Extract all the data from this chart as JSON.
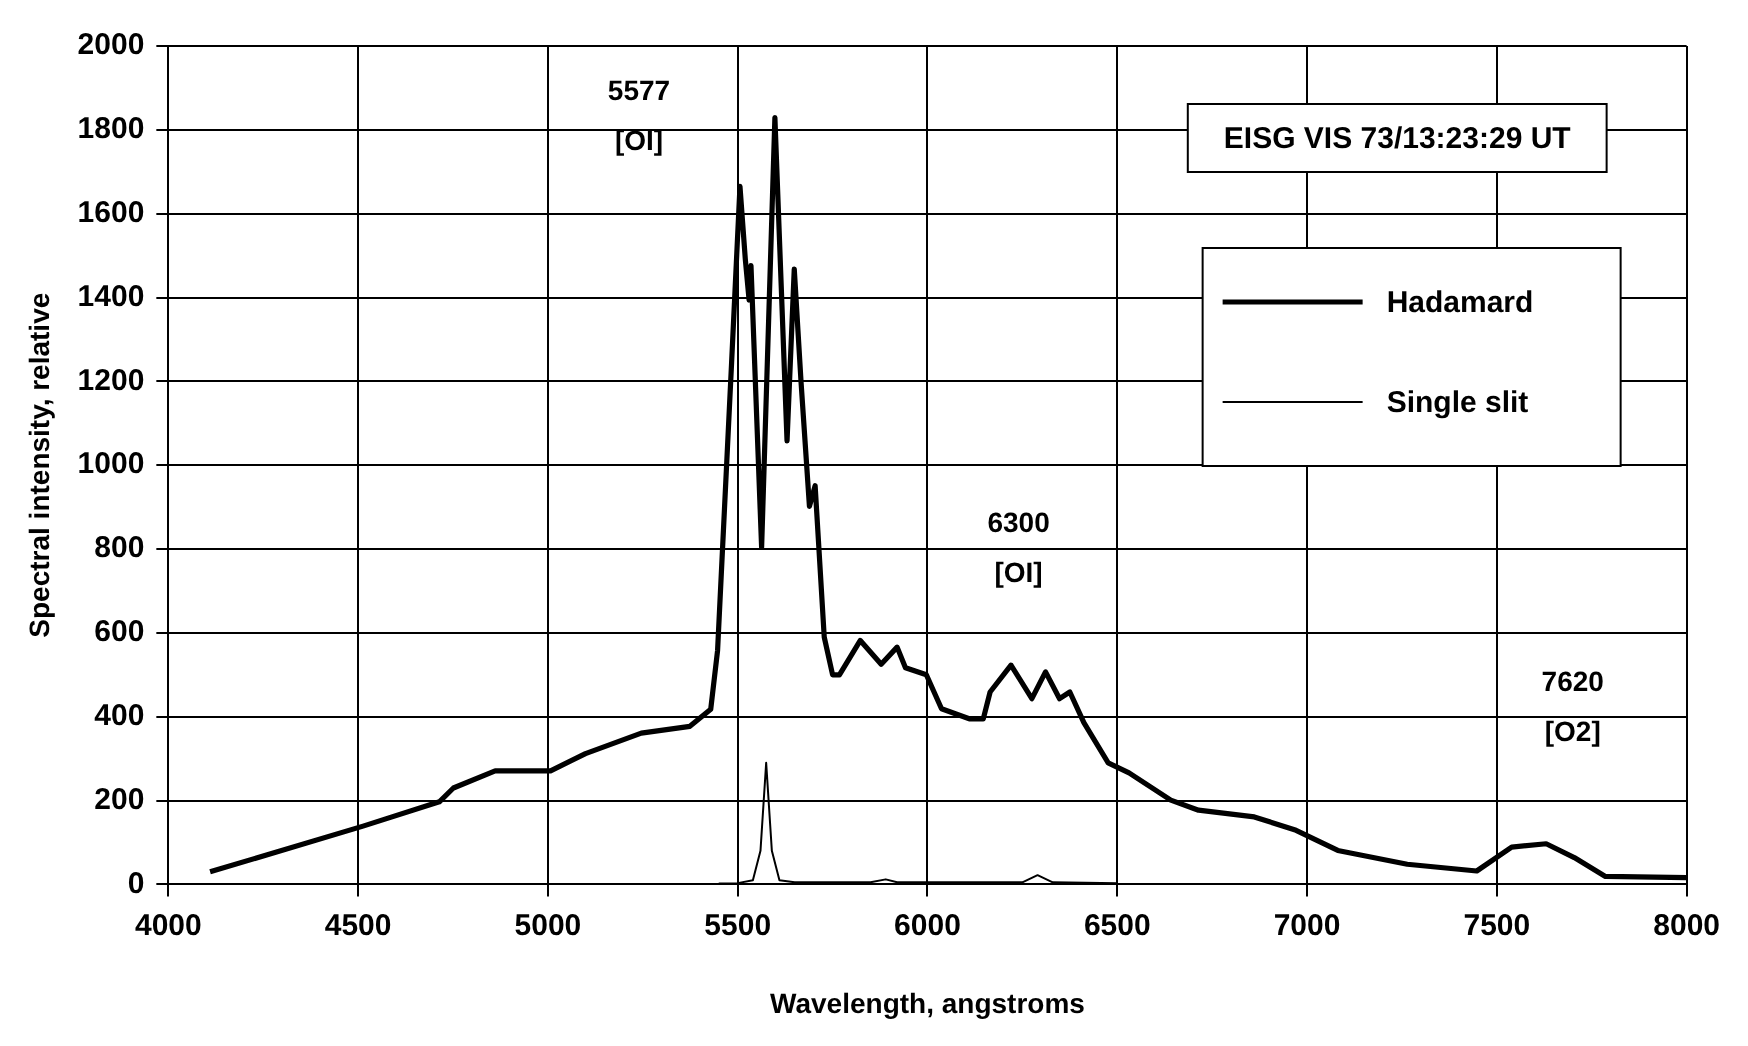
{
  "chart_data": {
    "type": "line",
    "xlabel": "Wavelength, angstroms",
    "ylabel": "Spectral intensity, relative",
    "xlim": [
      4000,
      8000
    ],
    "ylim": [
      0,
      2000
    ],
    "xticks": [
      4000,
      4500,
      5000,
      5500,
      6000,
      6500,
      7000,
      7500,
      8000
    ],
    "yticks": [
      0,
      200,
      400,
      600,
      800,
      1000,
      1200,
      1400,
      1600,
      1800,
      2000
    ],
    "grid": true,
    "legend": "right",
    "marker": "none",
    "line_style": "solid",
    "annotations": [
      "EISG VIS 73/13:23:29 UT",
      "5577\n[OI]",
      "6300\n[OI]",
      "7620\n[O2]"
    ],
    "series": [
      {
        "name": "Hadamard",
        "color": "#000000",
        "x": [
          4110,
          4513,
          4714,
          4751,
          4861,
          5007,
          5099,
          5246,
          5374,
          5429,
          5447,
          5484,
          5506,
          5520,
          5530,
          5535,
          5563,
          5598,
          5630,
          5649,
          5667,
          5689,
          5704,
          5728,
          5750,
          5768,
          5823,
          5878,
          5920,
          5942,
          5997,
          6037,
          6110,
          6147,
          6165,
          6220,
          6275,
          6311,
          6348,
          6375,
          6412,
          6476,
          6531,
          6641,
          6714,
          6861,
          6971,
          7081,
          7264,
          7447,
          7539,
          7630,
          7704,
          7786,
          8000
        ],
        "values": [
          30,
          139,
          197,
          230,
          271,
          271,
          312,
          361,
          377,
          418,
          558,
          1246,
          1665,
          1492,
          1394,
          1476,
          804,
          1829,
          1058,
          1468,
          1197,
          902,
          951,
          590,
          500,
          500,
          582,
          525,
          566,
          517,
          500,
          419,
          395,
          395,
          459,
          523,
          443,
          507,
          443,
          459,
          386,
          290,
          266,
          201,
          177,
          161,
          129,
          81,
          48,
          32,
          89,
          97,
          64,
          19,
          16
        ]
      },
      {
        "name": "Single slit",
        "color": "#000000",
        "x": [
          5450,
          5500,
          5540,
          5560,
          5575,
          5590,
          5610,
          5650,
          5850,
          5890,
          5920,
          6250,
          6290,
          6330,
          6500
        ],
        "values": [
          2,
          3,
          10,
          80,
          290,
          80,
          10,
          5,
          5,
          12,
          5,
          5,
          22,
          5,
          3
        ]
      }
    ]
  }
}
